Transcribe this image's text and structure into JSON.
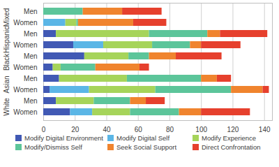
{
  "chart_data": {
    "type": "bar",
    "orientation": "horizontal",
    "stacked": true,
    "grid": true,
    "categories": [
      "Men",
      "Women",
      "Men",
      "Women",
      "Men",
      "Women",
      "Men",
      "Women",
      "Men",
      "Women"
    ],
    "groups": [
      "Mixed",
      "Mixed",
      "Hispanic",
      "Hispanic",
      "Black",
      "Black",
      "Asian",
      "Asian",
      "White",
      "White"
    ],
    "xlim": [
      0,
      145
    ],
    "xticks": [
      0,
      20,
      40,
      60,
      80,
      100,
      120,
      140
    ],
    "legend": "bottom",
    "series": [
      {
        "name": "Modify Digital Environment",
        "color": "#4159b4",
        "values": [
          0,
          0,
          8,
          19,
          26,
          6,
          10,
          4,
          8,
          17
        ]
      },
      {
        "name": "Modify Digital Self",
        "color": "#5bb6e6",
        "values": [
          0,
          14,
          0,
          19,
          0,
          0,
          0,
          25,
          0,
          14
        ]
      },
      {
        "name": "Modify Experience",
        "color": "#a6d45a",
        "values": [
          0,
          7,
          59,
          31,
          28,
          5,
          43,
          42,
          24,
          24
        ]
      },
      {
        "name": "Modify/Dismiss Self",
        "color": "#5cc59a",
        "values": [
          25,
          1,
          37,
          24,
          13,
          22,
          47,
          48,
          23,
          31
        ]
      },
      {
        "name": "Seek Social Support",
        "color": "#f0842e",
        "values": [
          25,
          35,
          8,
          7,
          17,
          28,
          10,
          20,
          10,
          14
        ]
      },
      {
        "name": "Direct Confrontation",
        "color": "#e6402d",
        "values": [
          25,
          21,
          30,
          25,
          29,
          6,
          9,
          4,
          12,
          31
        ]
      }
    ]
  }
}
